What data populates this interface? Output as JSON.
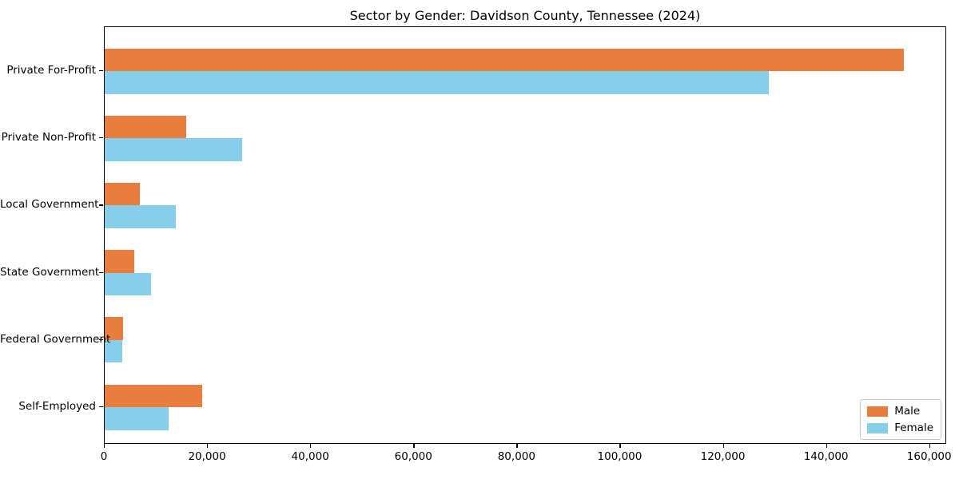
{
  "chart_data": {
    "type": "bar",
    "orientation": "horizontal",
    "title": "Sector by Gender: Davidson County, Tennessee (2024)",
    "categories": [
      "Private For-Profit",
      "Private Non-Profit",
      "Local Government",
      "State Government",
      "Federal Government",
      "Self-Employed"
    ],
    "series": [
      {
        "name": "Male",
        "color": "#E87D3E",
        "values": [
          155300,
          15900,
          6900,
          5800,
          3500,
          19000
        ]
      },
      {
        "name": "Female",
        "color": "#87CEEB",
        "values": [
          129000,
          26700,
          13800,
          9000,
          3400,
          12400
        ]
      }
    ],
    "xlabel": "",
    "ylabel": "",
    "xlim": [
      0,
      163300
    ],
    "xticks": [
      0,
      20000,
      40000,
      60000,
      80000,
      100000,
      120000,
      140000,
      160000
    ],
    "xtick_labels": [
      "0",
      "20,000",
      "40,000",
      "60,000",
      "80,000",
      "100,000",
      "120,000",
      "140,000",
      "160,000"
    ],
    "grid": false,
    "legend_position": "lower right"
  },
  "colors": {
    "male": "#E87D3E",
    "female": "#87CEEB",
    "axis": "#000000",
    "legend_border": "#C9C9C9",
    "background": "#FFFFFF"
  }
}
